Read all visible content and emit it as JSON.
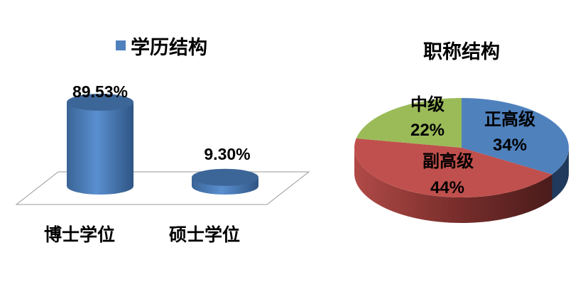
{
  "chart_data": [
    {
      "type": "bar",
      "style": "3d-cylinder",
      "title": "学历结构",
      "legend": {
        "entries": [
          "学历结构"
        ],
        "placement": "top"
      },
      "categories": [
        "博士学位",
        "硕士学位"
      ],
      "values": [
        89.53,
        9.3
      ],
      "data_labels": [
        "89.53%",
        "9.30%"
      ],
      "unit": "%",
      "color": "#4F81BD",
      "grid": false
    },
    {
      "type": "pie",
      "style": "3d",
      "title": "职称结构",
      "slices": [
        {
          "label": "正高级",
          "value": 34,
          "data_label": "34%",
          "color": "#4F81BD"
        },
        {
          "label": "副高级",
          "value": 44,
          "data_label": "44%",
          "color": "#C0504D"
        },
        {
          "label": "中级",
          "value": 22,
          "data_label": "22%",
          "color": "#9BBB59"
        }
      ]
    }
  ]
}
